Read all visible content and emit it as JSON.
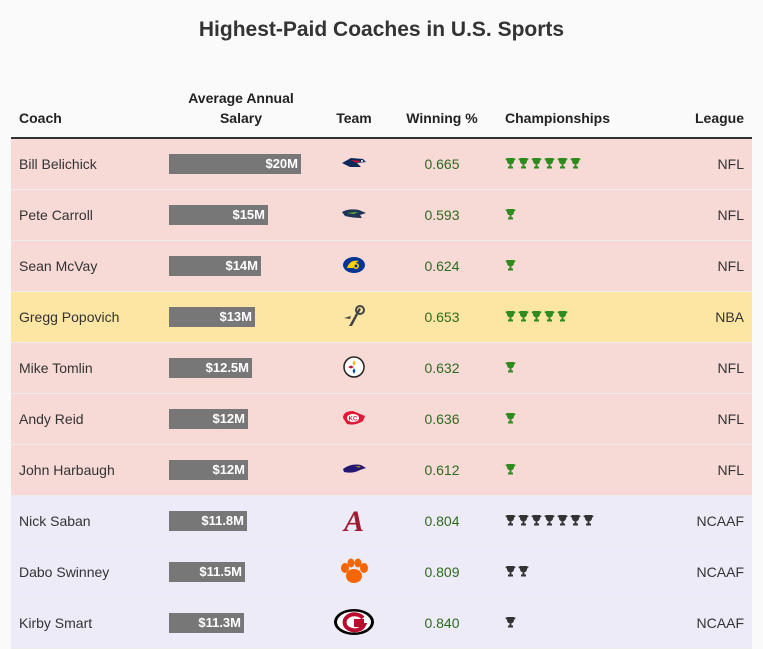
{
  "title": "Highest-Paid Coaches in U.S. Sports",
  "columns": {
    "coach": "Coach",
    "salary": "Average Annual Salary",
    "team": "Team",
    "winning": "Winning %",
    "championships": "Championships",
    "league": "League"
  },
  "colors": {
    "bar": "#777777",
    "nfl_row": "#f7d9d6",
    "nba_row": "#fde6a3",
    "ncaaf_row": "#ecebf7",
    "winning_text": "#2e6a1e",
    "trophy_pro": "#2e8b1e",
    "trophy_college": "#333333"
  },
  "chart_data": {
    "type": "table",
    "title": "Highest-Paid Coaches in U.S. Sports",
    "max_salary_musd": 20,
    "rows": [
      {
        "coach": "Bill Belichick",
        "salary_label": "$20M",
        "salary_musd": 20,
        "team_icon": "patriots-logo-icon",
        "winning": "0.665",
        "championships": 6,
        "league": "NFL"
      },
      {
        "coach": "Pete Carroll",
        "salary_label": "$15M",
        "salary_musd": 15,
        "team_icon": "seahawks-logo-icon",
        "winning": "0.593",
        "championships": 1,
        "league": "NFL"
      },
      {
        "coach": "Sean McVay",
        "salary_label": "$14M",
        "salary_musd": 14,
        "team_icon": "rams-logo-icon",
        "winning": "0.624",
        "championships": 1,
        "league": "NFL"
      },
      {
        "coach": "Gregg Popovich",
        "salary_label": "$13M",
        "salary_musd": 13,
        "team_icon": "spurs-logo-icon",
        "winning": "0.653",
        "championships": 5,
        "league": "NBA"
      },
      {
        "coach": "Mike Tomlin",
        "salary_label": "$12.5M",
        "salary_musd": 12.5,
        "team_icon": "steelers-logo-icon",
        "winning": "0.632",
        "championships": 1,
        "league": "NFL"
      },
      {
        "coach": "Andy Reid",
        "salary_label": "$12M",
        "salary_musd": 12,
        "team_icon": "chiefs-logo-icon",
        "winning": "0.636",
        "championships": 1,
        "league": "NFL"
      },
      {
        "coach": "John Harbaugh",
        "salary_label": "$12M",
        "salary_musd": 12,
        "team_icon": "ravens-logo-icon",
        "winning": "0.612",
        "championships": 1,
        "league": "NFL"
      },
      {
        "coach": "Nick Saban",
        "salary_label": "$11.8M",
        "salary_musd": 11.8,
        "team_icon": "alabama-logo-icon",
        "winning": "0.804",
        "championships": 7,
        "league": "NCAAF"
      },
      {
        "coach": "Dabo Swinney",
        "salary_label": "$11.5M",
        "salary_musd": 11.5,
        "team_icon": "clemson-logo-icon",
        "winning": "0.809",
        "championships": 2,
        "league": "NCAAF"
      },
      {
        "coach": "Kirby Smart",
        "salary_label": "$11.3M",
        "salary_musd": 11.3,
        "team_icon": "georgia-logo-icon",
        "winning": "0.840",
        "championships": 1,
        "league": "NCAAF"
      }
    ]
  }
}
